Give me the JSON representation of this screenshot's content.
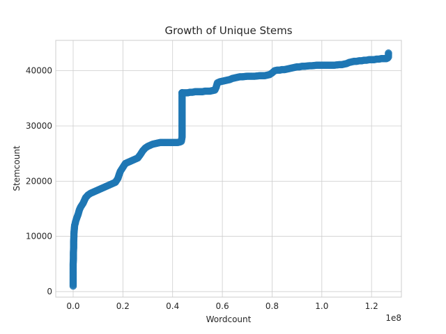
{
  "chart_data": {
    "type": "scatter",
    "title": "Growth of Unique Stems",
    "xlabel": "Wordcount",
    "ylabel": "Stemcount",
    "x_offset_label": "1e8",
    "xlim": [
      -0.07,
      1.32
    ],
    "ylim": [
      -1000,
      45500
    ],
    "x_ticks": [
      0.0,
      0.2,
      0.4,
      0.6,
      0.8,
      1.0,
      1.2
    ],
    "x_tick_labels": [
      "0.0",
      "0.2",
      "0.4",
      "0.6",
      "0.8",
      "1.0",
      "1.2"
    ],
    "y_ticks": [
      0,
      10000,
      20000,
      30000,
      40000
    ],
    "y_tick_labels": [
      "0",
      "10000",
      "20000",
      "30000",
      "40000"
    ],
    "grid": true,
    "color": "#1f77b4",
    "series": [
      {
        "x": [
          0.0,
          0.0,
          0.0,
          0.0,
          0.0,
          0.001,
          0.001,
          0.002,
          0.002,
          0.003,
          0.003,
          0.004,
          0.005,
          0.006,
          0.008,
          0.01,
          0.012,
          0.015,
          0.02,
          0.025,
          0.03,
          0.04,
          0.05,
          0.06,
          0.07,
          0.08,
          0.09,
          0.1,
          0.11,
          0.12,
          0.13,
          0.14,
          0.15,
          0.16,
          0.17,
          0.18,
          0.185,
          0.19,
          0.2,
          0.21,
          0.22,
          0.23,
          0.24,
          0.25,
          0.26,
          0.27,
          0.28,
          0.29,
          0.3,
          0.31,
          0.32,
          0.33,
          0.34,
          0.35,
          0.36,
          0.37,
          0.38,
          0.39,
          0.4,
          0.41,
          0.42,
          0.43,
          0.435,
          0.438,
          0.438,
          0.438,
          0.438,
          0.438,
          0.438,
          0.438,
          0.438,
          0.438,
          0.438,
          0.438,
          0.438,
          0.438,
          0.438,
          0.438,
          0.438,
          0.44,
          0.45,
          0.46,
          0.47,
          0.48,
          0.49,
          0.5,
          0.51,
          0.52,
          0.53,
          0.54,
          0.55,
          0.56,
          0.57,
          0.575,
          0.58,
          0.59,
          0.6,
          0.61,
          0.62,
          0.63,
          0.64,
          0.65,
          0.66,
          0.67,
          0.68,
          0.69,
          0.7,
          0.71,
          0.72,
          0.73,
          0.74,
          0.75,
          0.76,
          0.77,
          0.78,
          0.79,
          0.8,
          0.81,
          0.82,
          0.83,
          0.84,
          0.85,
          0.86,
          0.87,
          0.88,
          0.89,
          0.9,
          0.91,
          0.92,
          0.93,
          0.94,
          0.95,
          0.96,
          0.97,
          0.98,
          0.99,
          1.0,
          1.01,
          1.02,
          1.03,
          1.04,
          1.05,
          1.06,
          1.07,
          1.08,
          1.09,
          1.1,
          1.11,
          1.12,
          1.13,
          1.14,
          1.15,
          1.16,
          1.17,
          1.18,
          1.19,
          1.2,
          1.21,
          1.22,
          1.23,
          1.24,
          1.25,
          1.26,
          1.265,
          1.268,
          1.268,
          1.268
        ],
        "y": [
          1000,
          2000,
          3000,
          4000,
          5000,
          6000,
          7000,
          8000,
          9000,
          10000,
          10500,
          11000,
          11500,
          12000,
          12300,
          12700,
          13000,
          13400,
          14000,
          14800,
          15300,
          16000,
          17000,
          17500,
          17800,
          18000,
          18200,
          18400,
          18600,
          18800,
          19000,
          19200,
          19400,
          19600,
          19800,
          20500,
          21200,
          21800,
          22500,
          23200,
          23400,
          23600,
          23800,
          24000,
          24200,
          24800,
          25500,
          26000,
          26300,
          26500,
          26700,
          26800,
          26900,
          27000,
          27000,
          27000,
          27000,
          27000,
          27000,
          27000,
          27000,
          27100,
          27200,
          28000,
          29000,
          30000,
          31000,
          32000,
          33000,
          34000,
          35000,
          35500,
          35800,
          35900,
          35950,
          36000,
          36000,
          36000,
          36000,
          36000,
          36000,
          36000,
          36100,
          36100,
          36200,
          36200,
          36200,
          36200,
          36300,
          36300,
          36300,
          36400,
          36500,
          37000,
          37800,
          38000,
          38100,
          38200,
          38300,
          38400,
          38600,
          38700,
          38800,
          38900,
          38900,
          38950,
          39000,
          39000,
          39000,
          39000,
          39050,
          39100,
          39100,
          39100,
          39200,
          39300,
          39600,
          40000,
          40100,
          40100,
          40200,
          40200,
          40300,
          40400,
          40500,
          40600,
          40700,
          40700,
          40800,
          40800,
          40850,
          40900,
          40900,
          40950,
          41000,
          41000,
          41000,
          41000,
          41000,
          41000,
          41000,
          41000,
          41050,
          41100,
          41100,
          41200,
          41300,
          41500,
          41600,
          41700,
          41700,
          41800,
          41800,
          41900,
          41900,
          42000,
          42000,
          42000,
          42100,
          42100,
          42200,
          42200,
          42200,
          42300,
          42500,
          42800,
          43200
        ]
      }
    ]
  }
}
